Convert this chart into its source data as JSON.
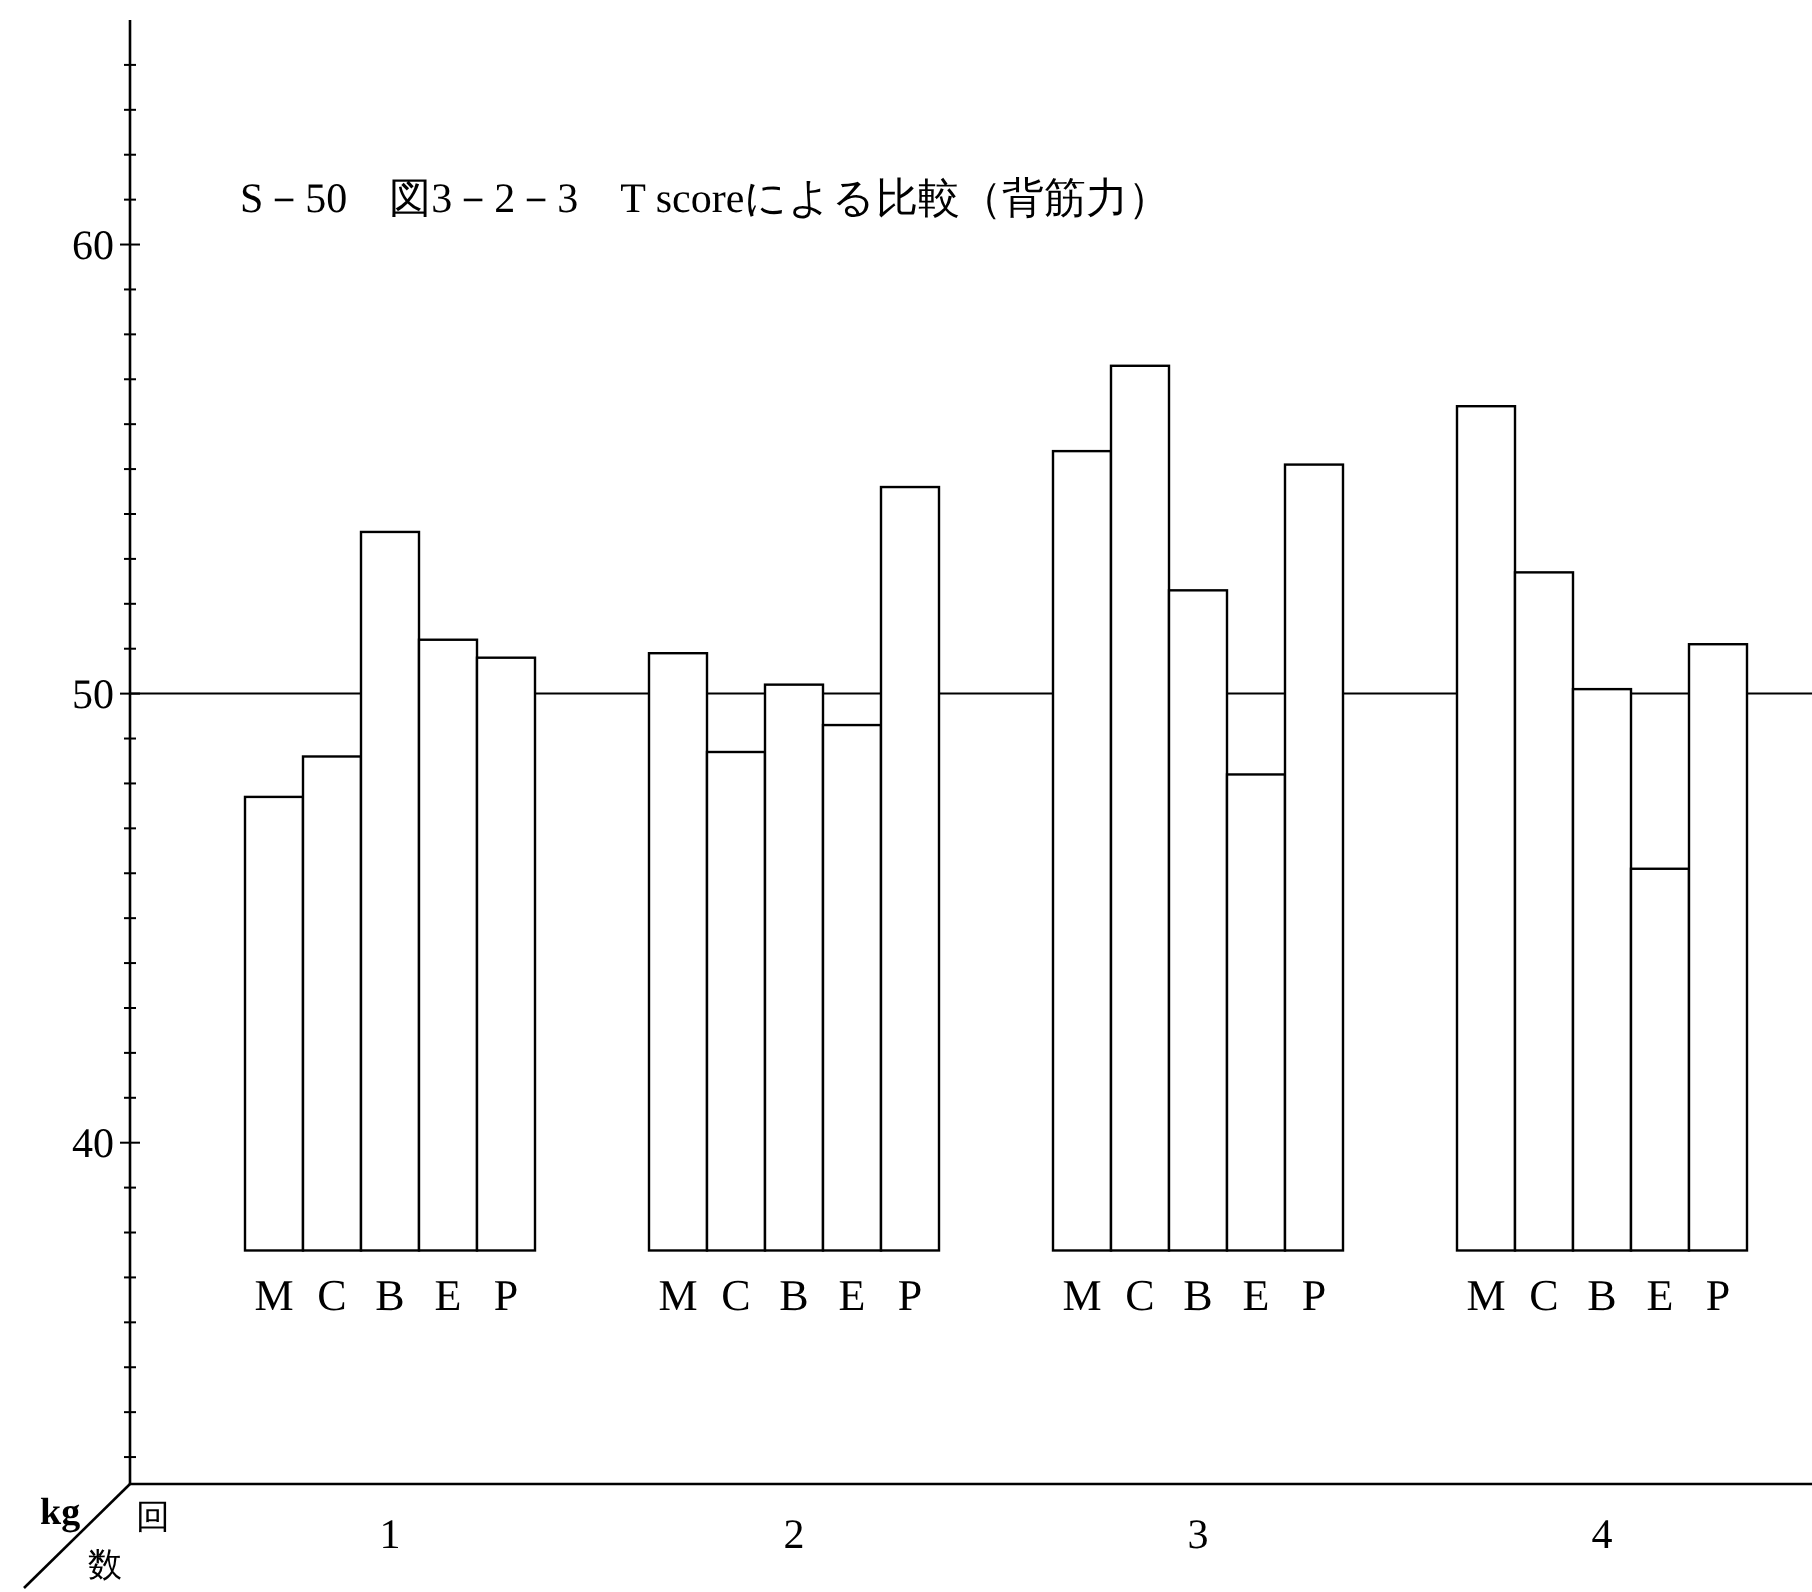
{
  "chart_data": {
    "type": "bar",
    "title": "S－50　図3－2－3　T scoreによる比較（背筋力）",
    "ylabel": "kg",
    "xlabel": "回数",
    "categories": [
      "1",
      "2",
      "3",
      "4"
    ],
    "series": [
      {
        "name": "M",
        "color": "#ffffff",
        "base": [
          37.6,
          37.6,
          37.6,
          37.6
        ],
        "values": [
          10.1,
          13.3,
          17.8,
          18.8
        ]
      },
      {
        "name": "C",
        "color": "#ffffff",
        "base": [
          37.6,
          37.6,
          37.6,
          37.6
        ],
        "values": [
          11.0,
          11.1,
          19.7,
          15.1
        ]
      },
      {
        "name": "B",
        "color": "#ffffff",
        "base": [
          37.6,
          37.6,
          37.6,
          37.6
        ],
        "values": [
          16.0,
          12.6,
          14.7,
          12.5
        ]
      },
      {
        "name": "E",
        "color": "#ffffff",
        "base": [
          37.6,
          37.6,
          37.6,
          37.6
        ],
        "values": [
          13.6,
          11.7,
          10.6,
          8.5
        ]
      },
      {
        "name": "P",
        "color": "#ffffff",
        "base": [
          37.6,
          37.6,
          37.6,
          37.6
        ],
        "values": [
          13.2,
          17.0,
          17.5,
          13.5
        ]
      }
    ],
    "ylim": [
      32.4,
      65
    ],
    "yticks": [
      {
        "value": 33,
        "label": null
      },
      {
        "value": 34,
        "label": null
      },
      {
        "value": 35,
        "label": null
      },
      {
        "value": 36,
        "label": null
      },
      {
        "value": 37,
        "label": null
      },
      {
        "value": 38,
        "label": null
      },
      {
        "value": 39,
        "label": null
      },
      40,
      {
        "value": 41,
        "label": null
      },
      {
        "value": 42,
        "label": null
      },
      {
        "value": 43,
        "label": null
      },
      {
        "value": 44,
        "label": null
      },
      {
        "value": 45,
        "label": null
      },
      {
        "value": 46,
        "label": null
      },
      {
        "value": 47,
        "label": null
      },
      {
        "value": 48,
        "label": null
      },
      {
        "value": 49,
        "label": null
      },
      50,
      {
        "value": 51,
        "label": null
      },
      {
        "value": 52,
        "label": null
      },
      {
        "value": 53,
        "label": null
      },
      {
        "value": 54,
        "label": null
      },
      {
        "value": 55,
        "label": null
      },
      {
        "value": 56,
        "label": null
      },
      {
        "value": 57,
        "label": null
      },
      {
        "value": 58,
        "label": null
      },
      {
        "value": 59,
        "label": null
      },
      60,
      {
        "value": 61,
        "label": null
      },
      {
        "value": 62,
        "label": null
      },
      {
        "value": 63,
        "label": null
      },
      {
        "value": 64,
        "label": null
      }
    ],
    "ref_lines": [
      {
        "axis": "y",
        "value": 50,
        "color": "#000000"
      }
    ],
    "grid": false
  }
}
